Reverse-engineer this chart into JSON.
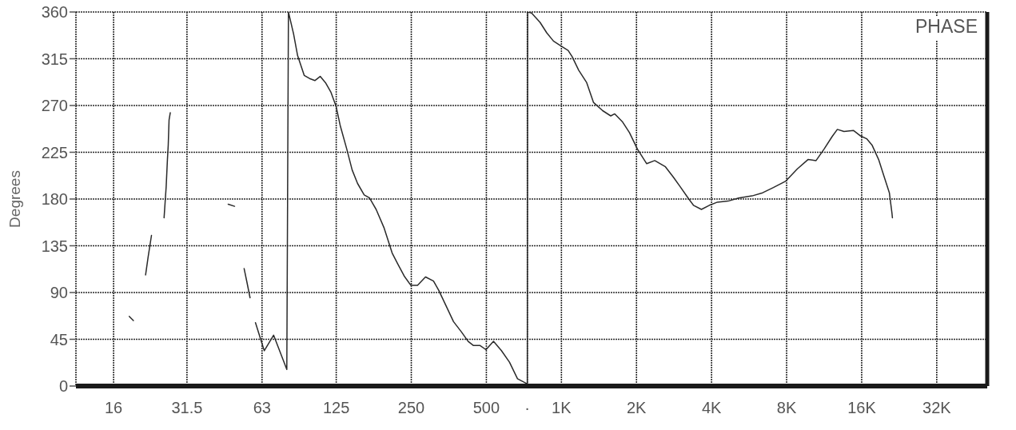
{
  "chart_data": {
    "type": "line",
    "ylabel": "Degrees",
    "annotations": [
      "PHASE"
    ],
    "x": [
      18.5,
      19.2,
      20,
      21.5,
      22.0,
      22.7,
      24,
      25.5,
      26.0,
      26.3,
      26.5,
      26.7,
      27.0,
      35,
      46.1,
      48.9,
      51,
      53.4,
      54.8,
      56.4,
      58,
      59.3,
      64.3,
      70.1,
      79.2,
      80.4,
      84.3,
      87.5,
      93.0,
      97.7,
      102.6,
      107.8,
      113.2,
      118.9,
      124.9,
      129.6,
      137.8,
      144.8,
      152.2,
      161.8,
      170.0,
      180.7,
      194.6,
      209.5,
      220.1,
      234.0,
      248.8,
      264.8,
      285.1,
      306.9,
      322.3,
      351.3,
      369.1,
      397.4,
      422.6,
      444.0,
      472.0,
      498.2,
      534.1,
      574.9,
      619.0,
      666.6,
      717.6,
      730,
      732,
      759,
      821,
      873,
      929,
      1000,
      1064,
      1104,
      1173,
      1263,
      1344,
      1464,
      1577,
      1636,
      1761,
      1874,
      2018,
      2198,
      2367,
      2613,
      2813,
      2991,
      3221,
      3384,
      3643,
      3922,
      4222,
      4659,
      5139,
      5813,
      6413,
      7080,
      7910,
      8837,
      9749,
      10500,
      11300,
      12170,
      12780,
      13590,
      14820,
      15760,
      16750,
      17600,
      18710,
      19660,
      20660,
      21170,
      21250
    ],
    "values": [
      67,
      63,
      null,
      107,
      124,
      145,
      null,
      162,
      192,
      218,
      232,
      256,
      263,
      null,
      175,
      173,
      null,
      113,
      100,
      85,
      null,
      61,
      34,
      49,
      16,
      360,
      339,
      318,
      299,
      296,
      294,
      298,
      292,
      283,
      269,
      251,
      228,
      208,
      195,
      184,
      181,
      170,
      152,
      128,
      118,
      106,
      97,
      97,
      105,
      101,
      92,
      73,
      62,
      52,
      43,
      39,
      39,
      35,
      43,
      34,
      23,
      7,
      3,
      2,
      360,
      359,
      350,
      340,
      332,
      327,
      323,
      317,
      304,
      292,
      273,
      265,
      260,
      262,
      254,
      244,
      228,
      214,
      217,
      211,
      201,
      192,
      181,
      174,
      170,
      174,
      177,
      178,
      181,
      183,
      186,
      191,
      197,
      209,
      218,
      217,
      228,
      240,
      247,
      245,
      246,
      241,
      238,
      232,
      218,
      202,
      186,
      166,
      162
    ],
    "color": "#2a2a2a",
    "log": "x",
    "xlim": [
      11.3,
      51000
    ],
    "xticks": [
      16,
      31.5,
      63,
      125,
      250,
      500,
      {
        "value": 730,
        "label": "·"
      },
      {
        "value": 1000,
        "label": "1K"
      },
      {
        "value": 2000,
        "label": "2K"
      },
      {
        "value": 4000,
        "label": "4K"
      },
      {
        "value": 8000,
        "label": "8K"
      },
      {
        "value": 16000,
        "label": "16K"
      },
      {
        "value": 32000,
        "label": "32K"
      }
    ],
    "ylim": [
      0,
      360
    ],
    "yticks": [
      0,
      45,
      90,
      135,
      180,
      225,
      270,
      315,
      360
    ],
    "grid": true
  }
}
